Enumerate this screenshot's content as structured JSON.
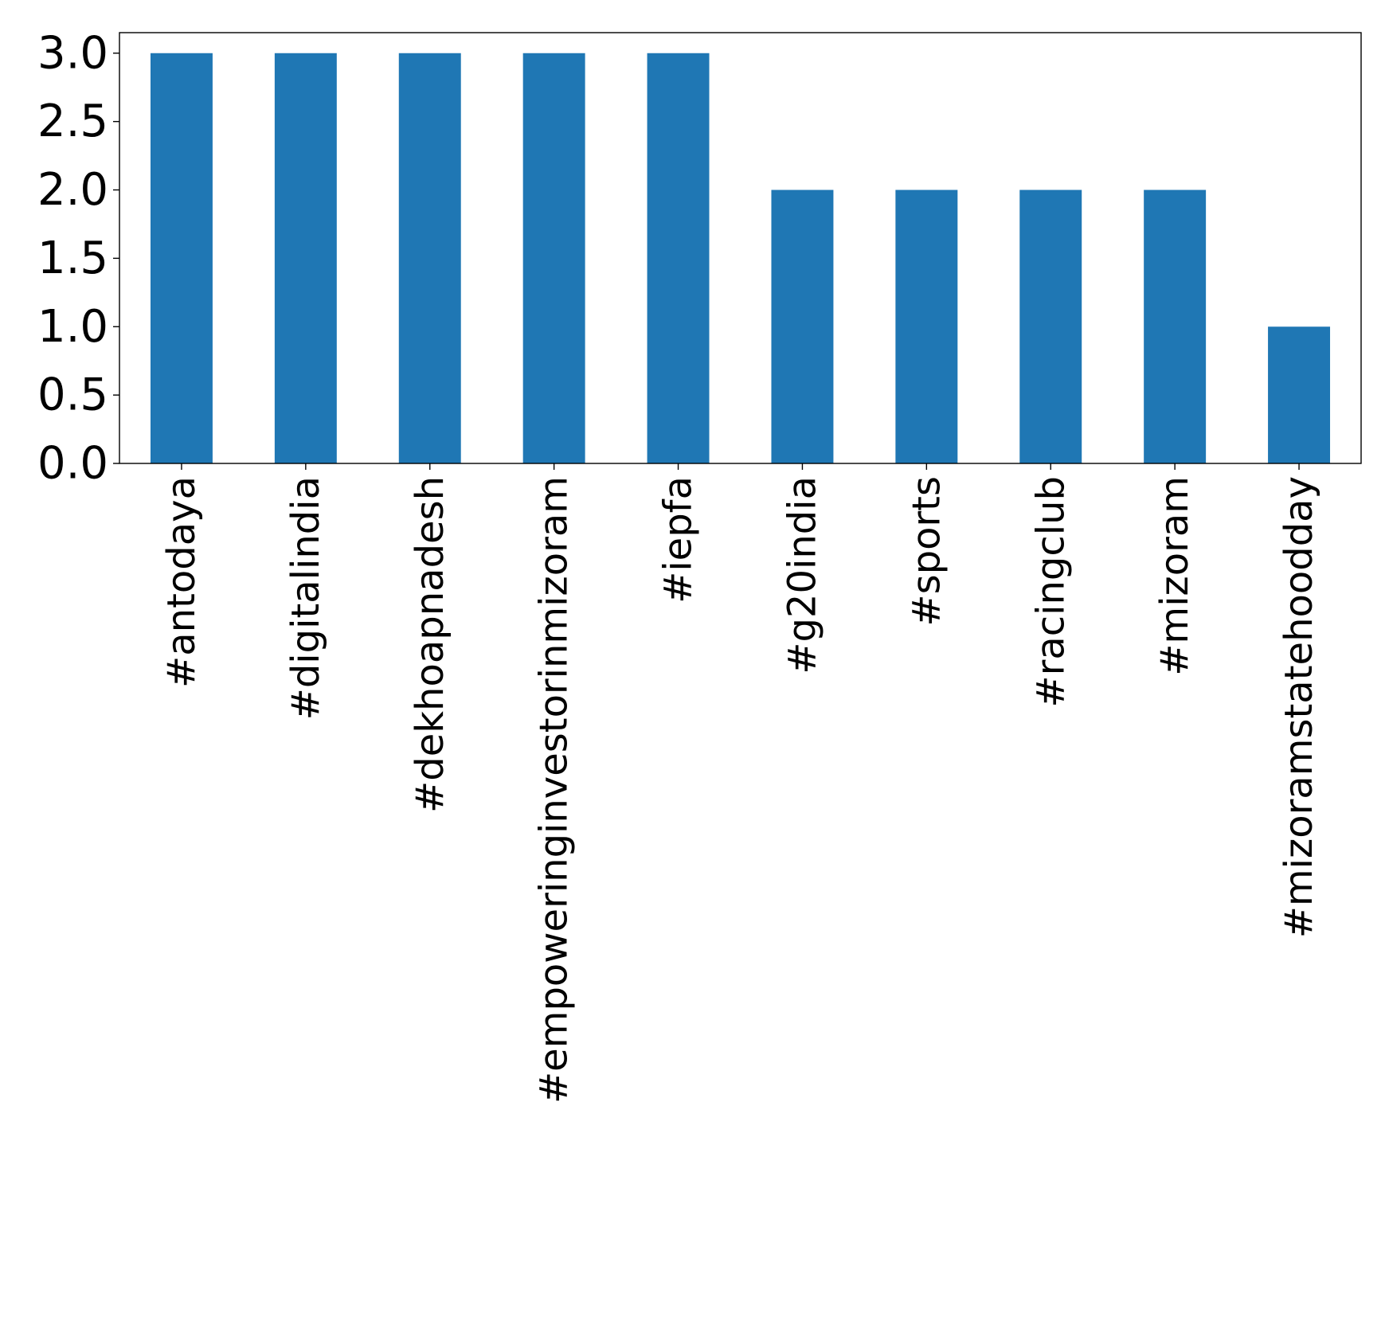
{
  "chart_data": {
    "type": "bar",
    "title": "",
    "xlabel": "",
    "ylabel": "",
    "categories": [
      "#antodaya",
      "#digitalindia",
      "#dekhoapnadesh",
      "#empoweringinvestorinmizoram",
      "#iepfa",
      "#g20india",
      "#sports",
      "#racingclub",
      "#mizoram",
      "#mizoramstatehoodday"
    ],
    "values": [
      3,
      3,
      3,
      3,
      3,
      2,
      2,
      2,
      2,
      1
    ],
    "ylim": [
      0,
      3.15
    ],
    "yticks": [
      "0.0",
      "0.5",
      "1.0",
      "1.5",
      "2.0",
      "2.5",
      "3.0"
    ],
    "bar_color": "#1f77b4",
    "grid": false,
    "legend": "none"
  }
}
